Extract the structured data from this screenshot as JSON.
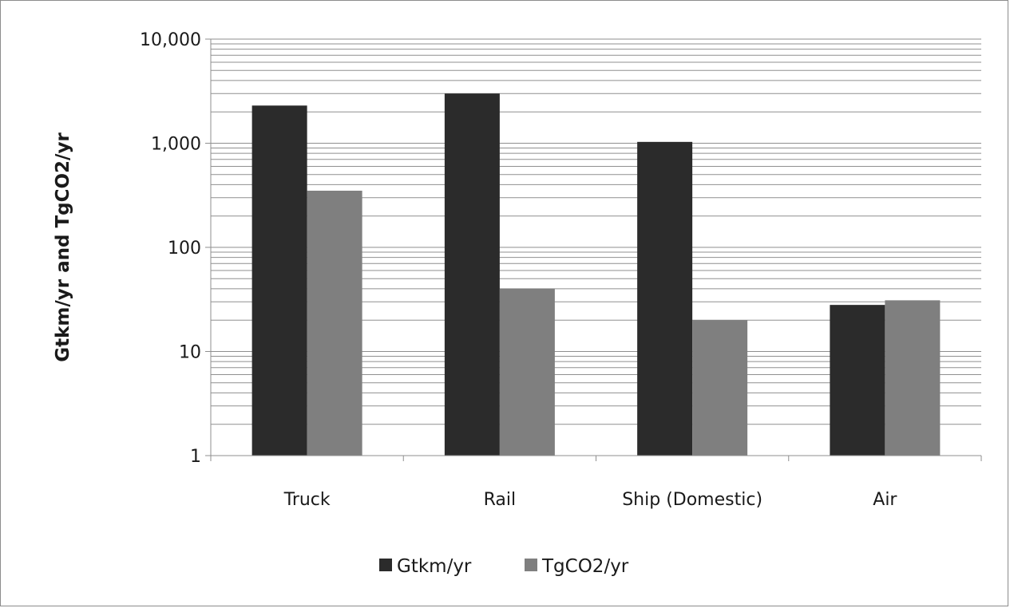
{
  "chart_data": {
    "type": "bar",
    "title": "",
    "xlabel": "",
    "ylabel": "Gtkm/yr and TgCO2/yr",
    "yscale": "log",
    "ylim": [
      1,
      10000
    ],
    "yticks": [
      "1",
      "10",
      "100",
      "1,000",
      "10,000"
    ],
    "ytick_values": [
      1,
      10,
      100,
      1000,
      10000
    ],
    "grid": true,
    "legend_position": "bottom",
    "categories": [
      "Truck",
      "Rail",
      "Ship (Domestic)",
      "Air"
    ],
    "series": [
      {
        "name": "Gtkm/yr",
        "color": "#2b2b2b",
        "values": [
          2300,
          3000,
          1030,
          28
        ]
      },
      {
        "name": "TgCO2/yr",
        "color": "#7f7f7f",
        "values": [
          350,
          40,
          20,
          31
        ]
      }
    ]
  }
}
